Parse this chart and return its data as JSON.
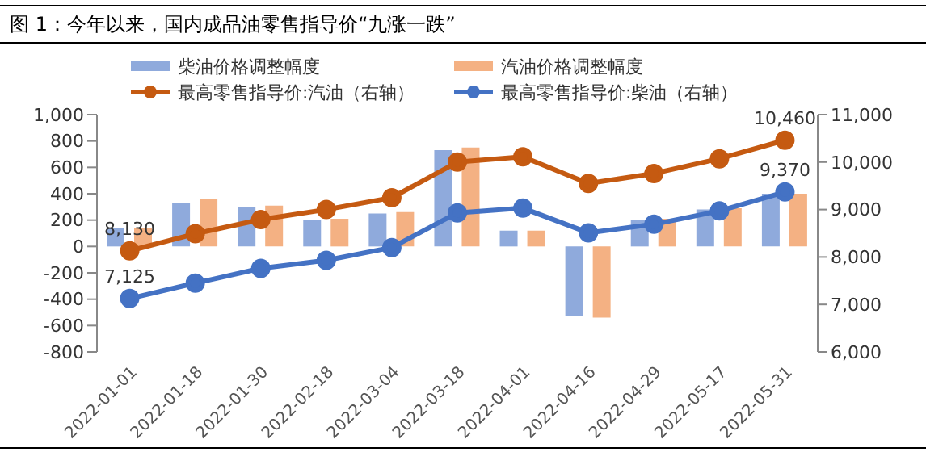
{
  "chart_data": {
    "type": "bar",
    "title": "图 1：今年以来，国内成品油零售指导价“九涨一跌”",
    "categories": [
      "2022-01-01",
      "2022-01-18",
      "2022-01-30",
      "2022-02-18",
      "2022-03-04",
      "2022-03-18",
      "2022-04-01",
      "2022-04-16",
      "2022-04-29",
      "2022-05-17",
      "2022-05-31"
    ],
    "series": [
      {
        "name": "柴油价格调整幅度",
        "color": "#8faadc",
        "values": [
          140,
          330,
          300,
          200,
          250,
          730,
          120,
          -530,
          200,
          280,
          400
        ]
      },
      {
        "name": "汽油价格调整幅度",
        "color": "#f4b183",
        "values": [
          140,
          360,
          310,
          210,
          260,
          750,
          120,
          -540,
          210,
          290,
          400
        ]
      },
      {
        "name": "最高零售指导价:汽油（右轴）",
        "type": "line",
        "axis": "y2",
        "color": "#c55a11",
        "values": [
          8130,
          8490,
          8790,
          9000,
          9250,
          10000,
          10110,
          9550,
          9760,
          10070,
          10460
        ],
        "value_labels": [
          "8,130",
          null,
          null,
          null,
          null,
          null,
          null,
          null,
          null,
          null,
          "10,460"
        ]
      },
      {
        "name": "最高零售指导价:柴油（右轴）",
        "type": "line",
        "axis": "y2",
        "color": "#4472c4",
        "values": [
          7125,
          7450,
          7760,
          7930,
          8200,
          8930,
          9030,
          8510,
          8690,
          8970,
          9370
        ],
        "value_labels": [
          "7,125",
          null,
          null,
          null,
          null,
          null,
          null,
          null,
          null,
          null,
          "9,370"
        ]
      }
    ],
    "ylim": [
      -800,
      1000
    ],
    "yticks": [
      -800,
      -600,
      -400,
      -200,
      0,
      200,
      400,
      600,
      800,
      {
        "value": 1000,
        "label": "1,000"
      }
    ],
    "y2lim": [
      6000,
      11000
    ],
    "y2ticks": [
      {
        "value": 6000,
        "label": "6,000"
      },
      {
        "value": 7000,
        "label": "7,000"
      },
      {
        "value": 8000,
        "label": "8,000"
      },
      {
        "value": 9000,
        "label": "9,000"
      },
      {
        "value": 10000,
        "label": "10,000"
      },
      {
        "value": 11000,
        "label": "11,000"
      }
    ],
    "marker": "circle",
    "legend": "top"
  }
}
